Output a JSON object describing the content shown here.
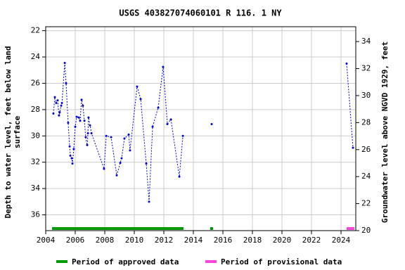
{
  "chart_data": {
    "type": "line",
    "title": "USGS 403827074060101 R 116. 1 NY",
    "ylabel": [
      "Depth to water level, feet below land",
      "surface"
    ],
    "y2label": "Groundwater level above NGVD 1929, feet",
    "xlim": [
      2004,
      2025
    ],
    "xticks": [
      2004,
      2006,
      2008,
      2010,
      2012,
      2014,
      2016,
      2018,
      2020,
      2022,
      2024
    ],
    "ylim": [
      37.2,
      21.7
    ],
    "yticks": [
      22,
      24,
      26,
      28,
      30,
      32,
      34,
      36
    ],
    "y2lim": [
      20,
      35.1
    ],
    "y2ticks": [
      20,
      22,
      24,
      26,
      28,
      30,
      32,
      34
    ],
    "grid": true,
    "series": [
      {
        "color": "#0000cc",
        "x": [
          2004.52,
          2004.62,
          2004.71,
          2004.81,
          2004.9,
          2004.95,
          2005.05,
          2005.1,
          2005.29,
          2005.38,
          2005.52,
          2005.62,
          2005.67,
          2005.76,
          2005.81,
          2005.9,
          2006.0,
          2006.1,
          2006.24,
          2006.33,
          2006.43,
          2006.52,
          2006.62,
          2006.71,
          2006.81,
          2006.86,
          2006.9,
          2007.0,
          2007.1,
          2007.95,
          2008.1,
          2008.43,
          2008.81,
          2009.05,
          2009.14,
          2009.33,
          2009.62,
          2009.71,
          2010.19,
          2010.43,
          2010.81,
          2011.0,
          2011.24,
          2011.62,
          2011.95,
          2012.24,
          2012.48,
          2013.05,
          2013.29,
          null,
          2015.24,
          null,
          2024.38,
          2024.81
        ],
        "values": [
          28.3,
          27.05,
          27.5,
          27.3,
          28.45,
          28.2,
          27.7,
          27.5,
          24.45,
          26.0,
          29.0,
          30.8,
          31.5,
          31.7,
          32.1,
          31.0,
          29.3,
          28.55,
          28.6,
          28.85,
          27.25,
          27.7,
          28.85,
          30.1,
          30.7,
          29.8,
          28.6,
          29.2,
          29.8,
          32.5,
          30.0,
          30.1,
          33.0,
          32.05,
          31.7,
          30.2,
          29.9,
          31.1,
          26.25,
          27.2,
          32.1,
          35.0,
          29.3,
          27.85,
          24.75,
          29.1,
          28.75,
          33.1,
          30.0,
          null,
          29.1,
          null,
          24.5,
          30.9
        ]
      }
    ],
    "periods": [
      {
        "name": "Period of approved data",
        "color": "#009900",
        "spans": [
          {
            "start": 2004.43,
            "end": 2013.33
          },
          {
            "start": 2015.14,
            "end": 2015.33
          }
        ]
      },
      {
        "name": "Period of provisional data",
        "color": "#ff44dd",
        "spans": [
          {
            "start": 2024.38,
            "end": 2024.9
          }
        ]
      }
    ]
  }
}
